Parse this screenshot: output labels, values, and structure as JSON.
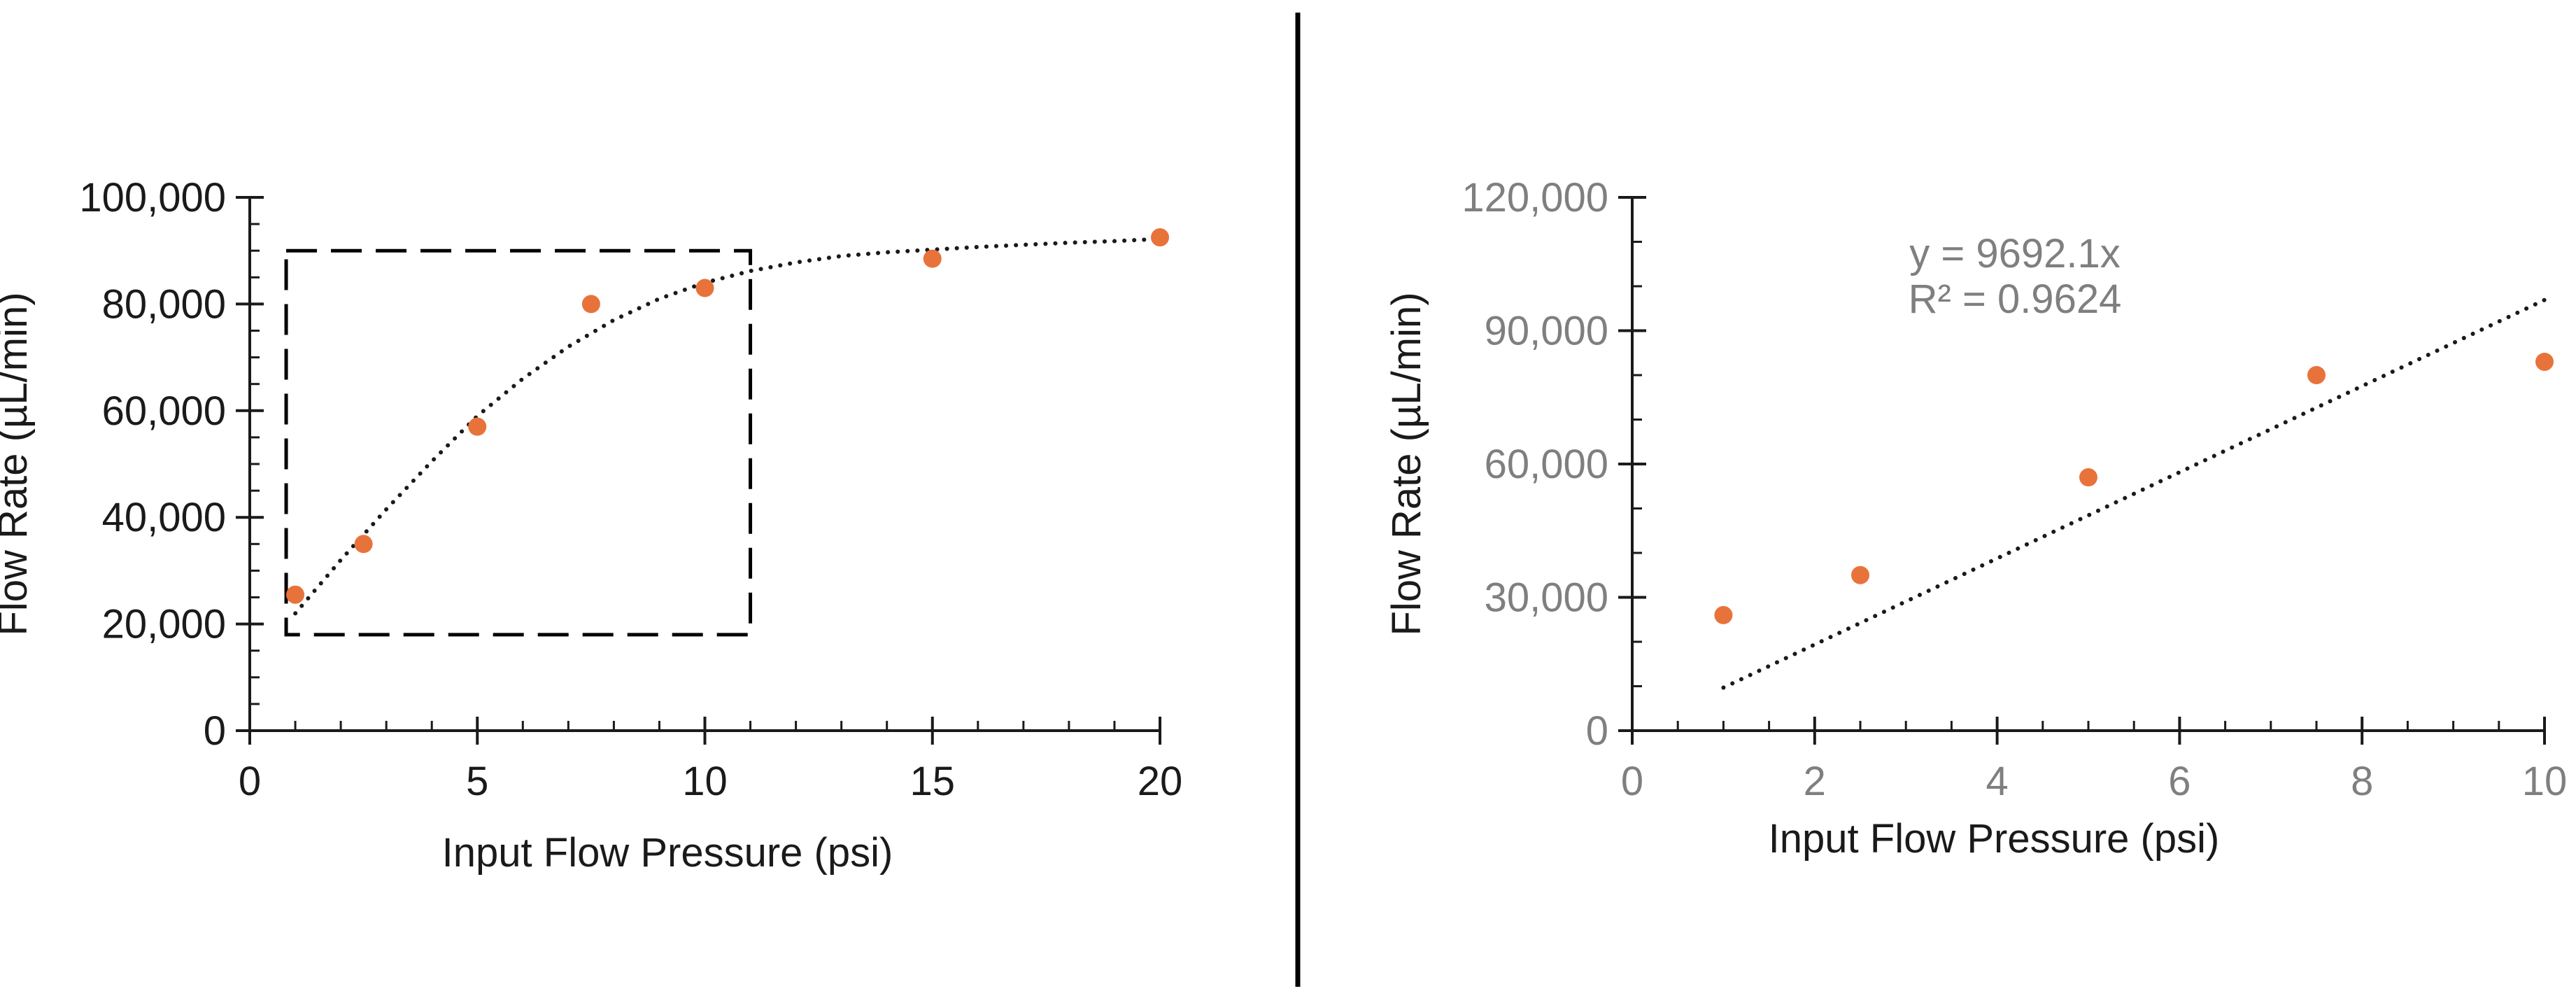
{
  "colors": {
    "point": "#E8733A",
    "trend": "#1a1a1a",
    "axis_left": "#1a1a1a",
    "axis_right": "#1a1a1a",
    "tick_text_left": "#1a1a1a",
    "tick_text_right": "#7f7f7f",
    "divider": "#000000"
  },
  "chart_data": [
    {
      "type": "scatter",
      "xlabel": "Input Flow Pressure (psi)",
      "ylabel": "Flow Rate (µL/min)",
      "xlim": [
        0,
        20
      ],
      "ylim": [
        0,
        100000
      ],
      "x_ticks": [
        0,
        5,
        10,
        15,
        20
      ],
      "x_tick_labels": [
        "0",
        "5",
        "10",
        "15",
        "20"
      ],
      "y_ticks": [
        0,
        20000,
        40000,
        60000,
        80000,
        100000
      ],
      "y_tick_labels": [
        "0",
        "20,000",
        "40,000",
        "60,000",
        "80,000",
        "100,000"
      ],
      "grid": false,
      "series": [
        {
          "x": [
            1,
            2.5,
            5,
            7.5,
            10,
            15,
            20
          ],
          "y": [
            25500,
            35000,
            57000,
            80000,
            83000,
            88500,
            92500
          ]
        }
      ],
      "trendline": {
        "style": "dotted",
        "x": [
          1,
          1.5,
          2,
          3,
          4,
          5,
          6,
          7,
          8,
          9,
          10,
          11,
          12,
          13,
          14,
          15,
          16,
          17,
          18,
          19,
          20
        ],
        "y": [
          22000,
          27000,
          32000,
          41500,
          50500,
          59000,
          66000,
          72000,
          77000,
          81000,
          84000,
          86200,
          87800,
          89000,
          89700,
          90200,
          90700,
          91100,
          91500,
          91800,
          92200
        ]
      },
      "highlight_box": {
        "style": "dashed",
        "x": [
          0.8,
          11
        ],
        "y": [
          18000,
          90000
        ]
      }
    },
    {
      "type": "scatter",
      "xlabel": "Input Flow Pressure (psi)",
      "ylabel": "Flow Rate (µL/min)",
      "xlim": [
        0,
        10
      ],
      "ylim": [
        0,
        120000
      ],
      "x_ticks": [
        0,
        2,
        4,
        6,
        8,
        10
      ],
      "x_tick_labels": [
        "0",
        "2",
        "4",
        "6",
        "8",
        "10"
      ],
      "y_ticks": [
        0,
        30000,
        60000,
        90000,
        120000
      ],
      "y_tick_labels": [
        "0",
        "30,000",
        "60,000",
        "90,000",
        "120,000"
      ],
      "grid": false,
      "series": [
        {
          "x": [
            1,
            2.5,
            5,
            7.5,
            10
          ],
          "y": [
            26000,
            35000,
            57000,
            80000,
            83000
          ]
        }
      ],
      "trendline": {
        "style": "dotted",
        "slope": 9692.1,
        "x": [
          1,
          10
        ]
      },
      "annotation": {
        "equation": "y = 9692.1x",
        "r_squared": "R² = 0.9624"
      }
    }
  ]
}
